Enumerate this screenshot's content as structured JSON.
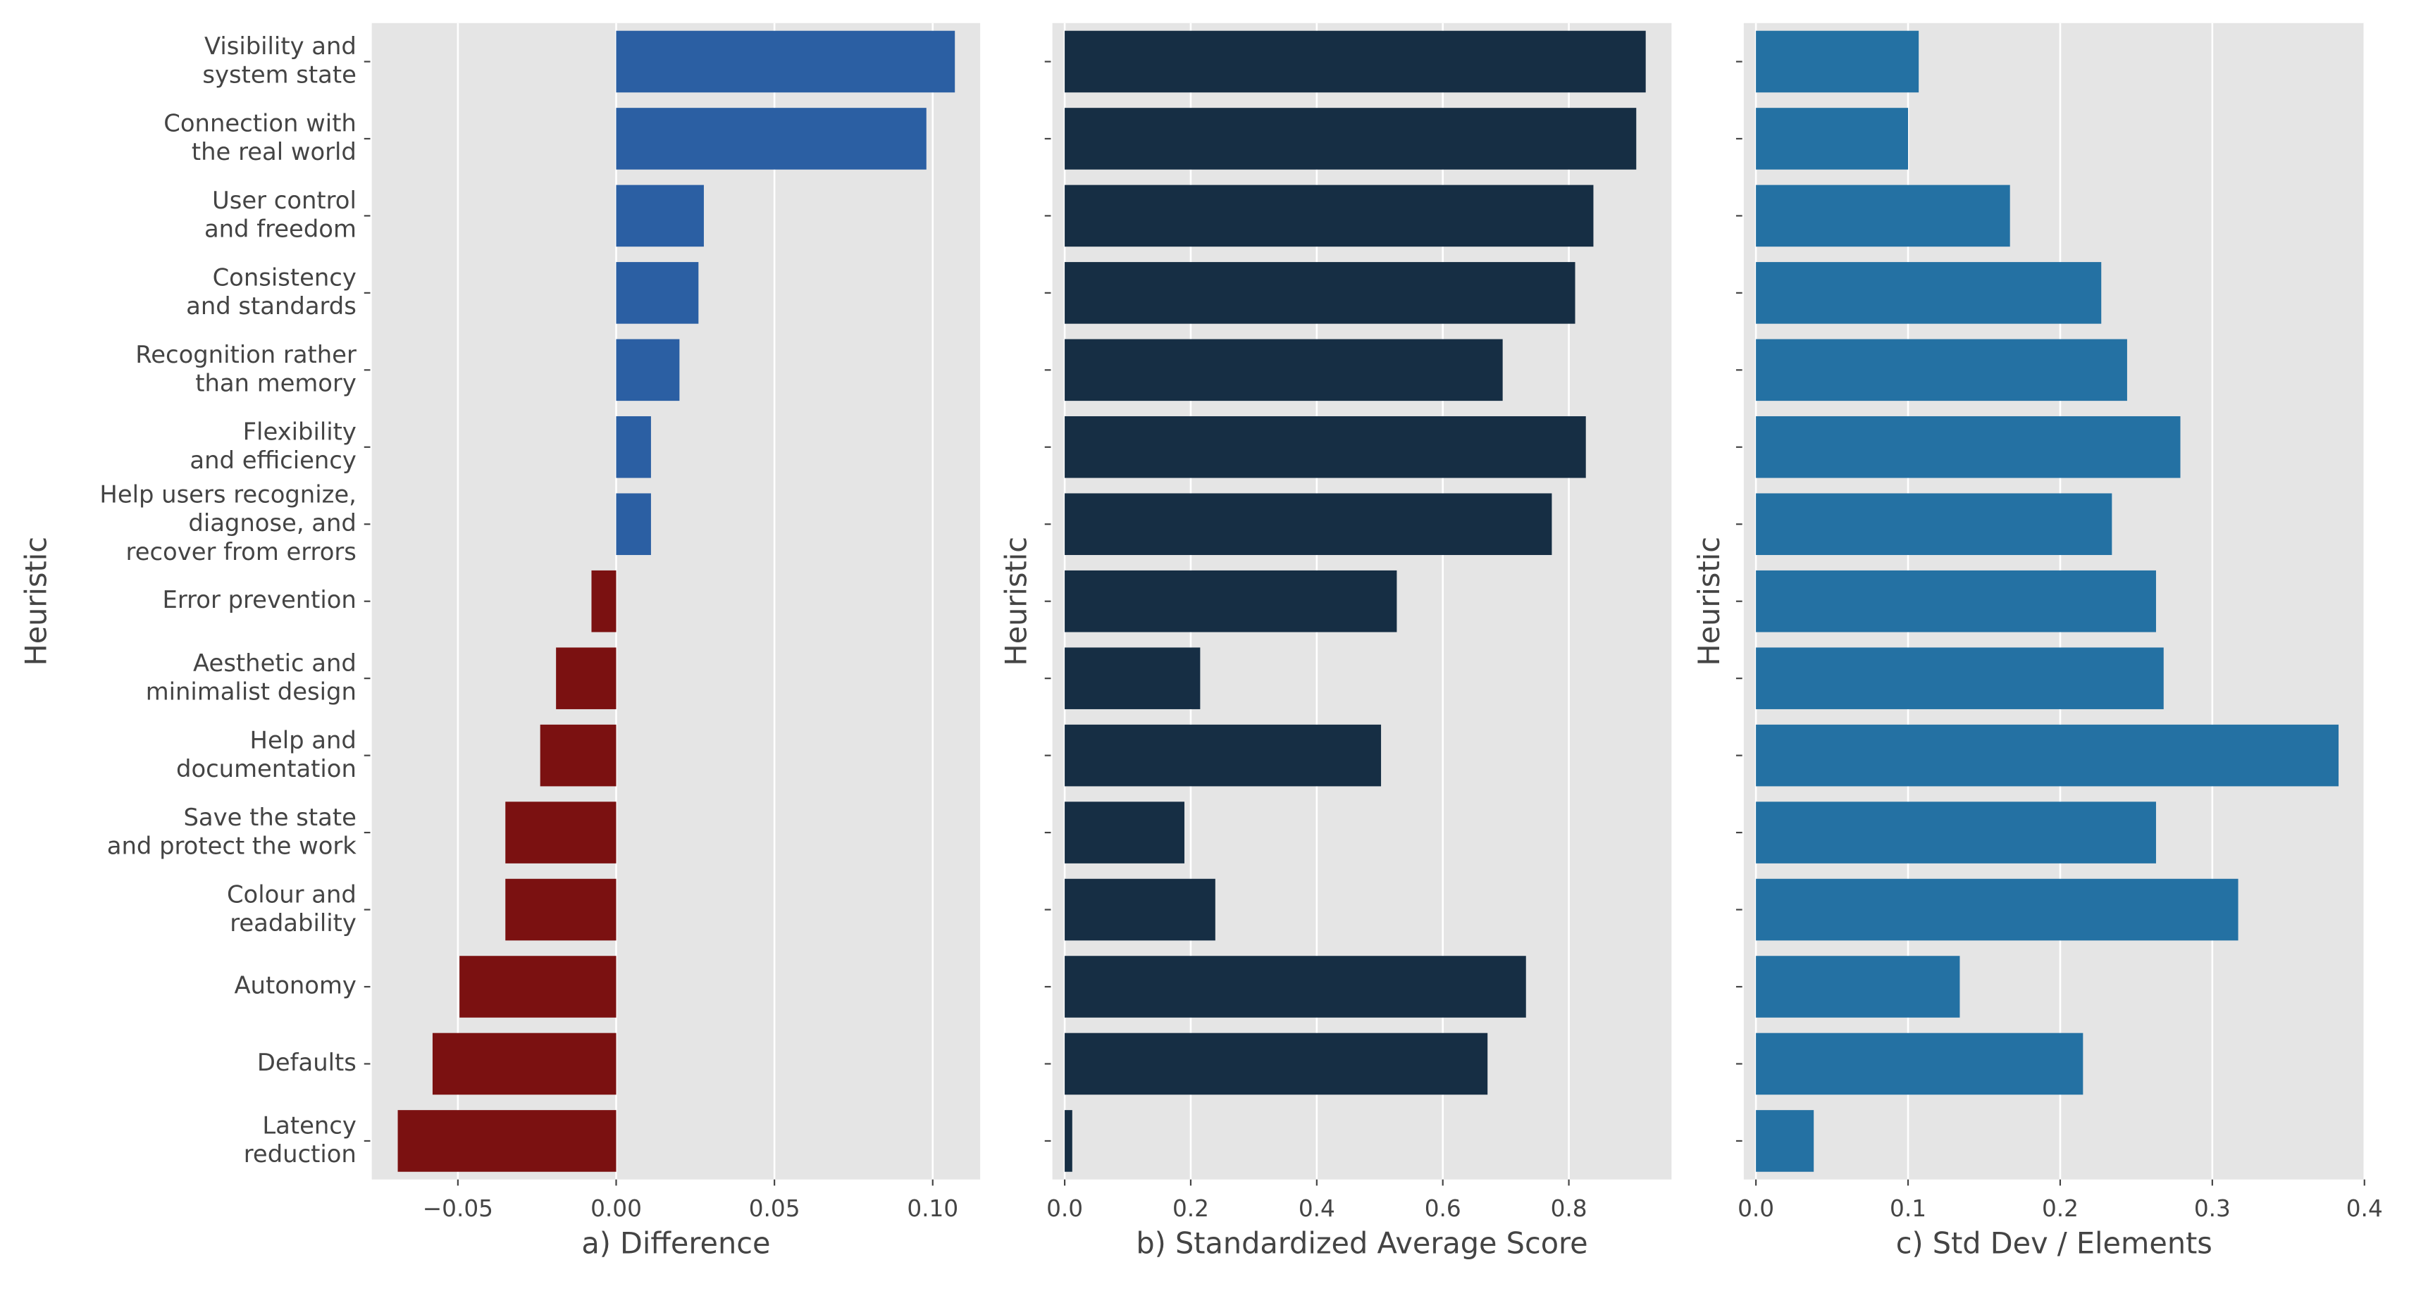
{
  "chart_data": [
    {
      "type": "bar",
      "orientation": "horizontal",
      "xlabel": "a) Difference",
      "ylabel": "Heuristic",
      "categories": [
        "Visibility and\nsystem state",
        "Connection with\nthe real world",
        "User control\nand freedom",
        "Consistency\nand standards",
        "Recognition rather\nthan memory",
        "Flexibility\nand efficiency",
        "Help users recognize,\ndiagnose, and\nrecover from errors",
        "Error prevention",
        "Aesthetic and\nminimalist design",
        "Help and\ndocumentation",
        "Save the state\nand protect the work",
        "Colour and\nreadability",
        "Autonomy",
        "Defaults",
        "Latency\nreduction"
      ],
      "values": [
        0.107,
        0.098,
        0.0277,
        0.026,
        0.02,
        0.011,
        0.011,
        -0.0078,
        -0.019,
        -0.024,
        -0.035,
        -0.035,
        -0.0495,
        -0.058,
        -0.069
      ],
      "color_positive": "#2b5fa3",
      "color_negative": "#7b1111",
      "xlim": [
        -0.0772,
        0.115
      ],
      "xticks": [
        {
          "value": -0.05,
          "label": "−0.05"
        },
        {
          "value": 0,
          "label": "0.00"
        },
        0.05,
        {
          "value": 0.1,
          "label": "0.10"
        }
      ],
      "grid": true
    },
    {
      "type": "bar",
      "orientation": "horizontal",
      "xlabel": "b) Standardized Average Score",
      "ylabel": "Heuristic",
      "values": [
        0.922,
        0.907,
        0.839,
        0.81,
        0.695,
        0.827,
        0.773,
        0.527,
        0.215,
        0.502,
        0.19,
        0.239,
        0.732,
        0.671,
        0.012
      ],
      "color": "#162e44",
      "xlim": [
        -0.0195,
        0.963
      ],
      "xticks": [
        {
          "value": 0,
          "label": "0.0"
        },
        0.2,
        0.4,
        0.6,
        0.8
      ],
      "grid": true
    },
    {
      "type": "bar",
      "orientation": "horizontal",
      "xlabel": "c) Std Dev / Elements",
      "ylabel": "Heuristic",
      "values": [
        0.107,
        0.1,
        0.167,
        0.227,
        0.244,
        0.279,
        0.234,
        0.263,
        0.268,
        0.383,
        0.263,
        0.317,
        0.134,
        0.215,
        0.038
      ],
      "color": "#2471a3",
      "xlim": [
        -0.008,
        0.4
      ],
      "xticks": [
        {
          "value": 0,
          "label": "0.0"
        },
        0.1,
        0.2,
        0.3,
        0.4
      ],
      "grid": true
    }
  ]
}
